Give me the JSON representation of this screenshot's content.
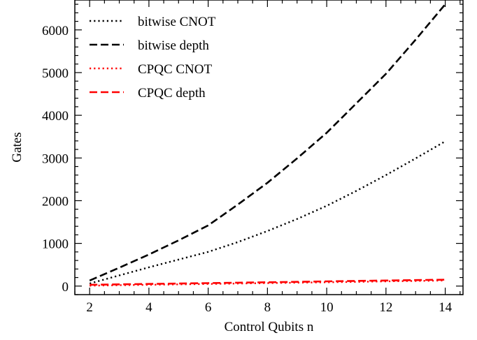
{
  "chart_data": {
    "type": "line",
    "xlabel": "Control Qubits n",
    "ylabel": "Gates",
    "xlim": [
      1.5,
      14.6
    ],
    "ylim": [
      -200,
      6700
    ],
    "x_ticks": [
      2,
      4,
      6,
      8,
      10,
      12,
      14
    ],
    "x_tick_labels": [
      "2",
      "4",
      "6",
      "8",
      "10",
      "12",
      "14"
    ],
    "x_minor_step": 0.5,
    "y_ticks": [
      0,
      1000,
      2000,
      3000,
      4000,
      5000,
      6000
    ],
    "y_tick_labels": [
      "0",
      "1000",
      "2000",
      "3000",
      "4000",
      "5000",
      "6000"
    ],
    "y_minor_step": 200,
    "grid": false,
    "legend_position": "top-left",
    "x": [
      2,
      3,
      4,
      5,
      6,
      7,
      8,
      9,
      10,
      11,
      12,
      13,
      14
    ],
    "series": [
      {
        "name": "bitwise CNOT",
        "color": "#000000",
        "linestyle": "dotted",
        "values": [
          60,
          250,
          440,
          620,
          800,
          1030,
          1290,
          1570,
          1880,
          2230,
          2600,
          2990,
          3390
        ]
      },
      {
        "name": "bitwise depth",
        "color": "#000000",
        "linestyle": "dashed",
        "values": [
          130,
          430,
          740,
          1070,
          1420,
          1910,
          2420,
          2990,
          3590,
          4280,
          4970,
          5770,
          6600
        ]
      },
      {
        "name": "CPQC CNOT",
        "color": "#ff0000",
        "linestyle": "dotted",
        "values": [
          10,
          20,
          30,
          40,
          50,
          60,
          70,
          80,
          90,
          100,
          110,
          120,
          130
        ]
      },
      {
        "name": "CPQC depth",
        "color": "#ff0000",
        "linestyle": "dashed",
        "values": [
          30,
          40,
          50,
          60,
          70,
          80,
          90,
          100,
          110,
          120,
          130,
          140,
          150
        ]
      }
    ]
  }
}
